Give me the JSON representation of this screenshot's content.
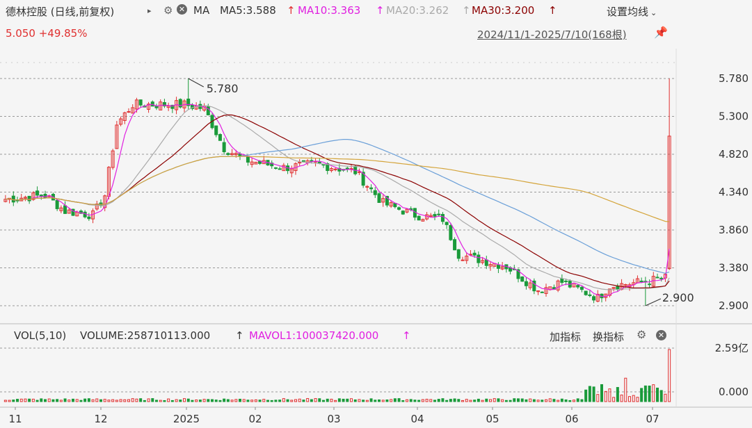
{
  "header": {
    "stock_title": "德林控股 (日线,前复权)",
    "ma_label": "MA",
    "ma5": "MA5:3.588",
    "ma10": "MA10:3.363",
    "ma20": "MA20:3.262",
    "ma30": "MA30:3.200",
    "settings_label": "设置均线",
    "price_change": "5.050 +49.85%",
    "date_range": "2024/11/1-2025/7/10(168根)",
    "colors": {
      "ma5": "#e020e0",
      "ma10": "#e020e0",
      "ma20": "#aaaaaa",
      "ma30": "#8b0000",
      "up": "#e03030",
      "down": "#1a9a3a"
    }
  },
  "volume_header": {
    "vol_label": "VOL(5,10)",
    "volume": "VOLUME:258710113.000",
    "mavol": "MAVOL1:100037420.000",
    "add_indicator": "加指标",
    "switch_indicator": "换指标"
  },
  "chart_data": {
    "type": "candlestick",
    "price_axis": {
      "ticks": [
        "5.780",
        "5.300",
        "4.820",
        "4.340",
        "3.860",
        "3.380",
        "2.900"
      ],
      "range": [
        2.78,
        5.9
      ]
    },
    "volume_axis": {
      "ticks": [
        "2.59亿",
        "0.000"
      ]
    },
    "x_ticks": [
      "11",
      "12",
      "2025",
      "02",
      "03",
      "04",
      "05",
      "06",
      "07"
    ],
    "annotations": {
      "high": "5.780",
      "low": "2.900"
    },
    "last_close": 5.05,
    "segments": [
      [
        0,
        4.25
      ],
      [
        10,
        4.3
      ],
      [
        15,
        4.1
      ],
      [
        22,
        4.05
      ],
      [
        25,
        4.3
      ],
      [
        28,
        5.2
      ],
      [
        32,
        5.45
      ],
      [
        45,
        5.45
      ],
      [
        50,
        5.4
      ],
      [
        55,
        4.9
      ],
      [
        60,
        4.75
      ],
      [
        70,
        4.65
      ],
      [
        78,
        4.7
      ],
      [
        88,
        4.6
      ],
      [
        95,
        4.2
      ],
      [
        103,
        4.05
      ],
      [
        110,
        4.0
      ],
      [
        114,
        3.55
      ],
      [
        118,
        3.5
      ],
      [
        126,
        3.4
      ],
      [
        134,
        3.1
      ],
      [
        140,
        3.2
      ],
      [
        149,
        3.0
      ],
      [
        152,
        3.15
      ],
      [
        160,
        3.2
      ],
      [
        166,
        3.25
      ],
      [
        167,
        5.05
      ]
    ]
  }
}
